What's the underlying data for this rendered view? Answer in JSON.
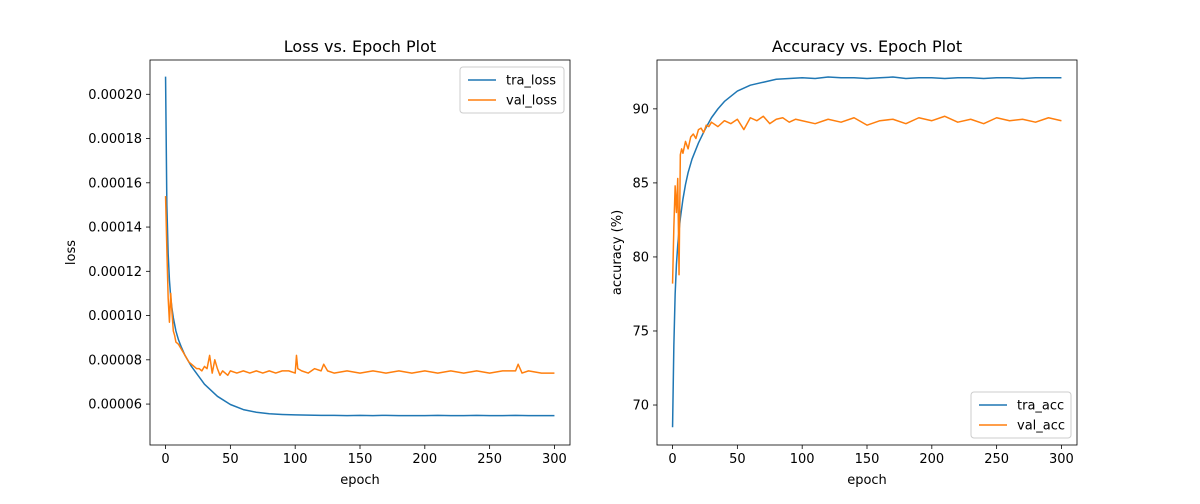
{
  "chart_data": [
    {
      "type": "line",
      "title": "Loss vs. Epoch Plot",
      "xlabel": "epoch",
      "ylabel": "loss",
      "xlim": [
        -12,
        312
      ],
      "ylim": [
        4.15e-05,
        0.0002155
      ],
      "xticks": [
        0,
        50,
        100,
        150,
        200,
        250,
        300
      ],
      "xtick_labels": [
        "0",
        "50",
        "100",
        "150",
        "200",
        "250",
        "300"
      ],
      "yticks": [
        6e-05,
        8e-05,
        0.0001,
        0.00012,
        0.00014,
        0.00016,
        0.00018,
        0.0002
      ],
      "ytick_labels": [
        "0.00006",
        "0.00008",
        "0.00010",
        "0.00012",
        "0.00014",
        "0.00016",
        "0.00018",
        "0.00020"
      ],
      "legend_position": "upper right",
      "series": [
        {
          "name": "tra_loss",
          "color": "#1f77b4",
          "x": [
            0,
            1,
            2,
            3,
            4,
            5,
            6,
            8,
            10,
            12,
            15,
            20,
            25,
            30,
            40,
            50,
            60,
            70,
            80,
            90,
            100,
            110,
            120,
            130,
            140,
            150,
            160,
            170,
            180,
            190,
            200,
            210,
            220,
            230,
            240,
            250,
            260,
            270,
            280,
            290,
            300
          ],
          "y": [
            0.000208,
            0.00015,
            0.000128,
            0.000116,
            0.000108,
            0.000103,
            9.9e-05,
            9.3e-05,
            8.9e-05,
            8.6e-05,
            8.2e-05,
            7.7e-05,
            7.3e-05,
            6.9e-05,
            6.35e-05,
            5.98e-05,
            5.75e-05,
            5.63e-05,
            5.56e-05,
            5.53e-05,
            5.51e-05,
            5.5e-05,
            5.49e-05,
            5.49e-05,
            5.48e-05,
            5.49e-05,
            5.48e-05,
            5.49e-05,
            5.48e-05,
            5.48e-05,
            5.48e-05,
            5.49e-05,
            5.48e-05,
            5.48e-05,
            5.49e-05,
            5.48e-05,
            5.48e-05,
            5.49e-05,
            5.48e-05,
            5.48e-05,
            5.48e-05
          ]
        },
        {
          "name": "val_loss",
          "color": "#ff7f0e",
          "x": [
            0,
            1,
            2,
            3,
            4,
            5,
            6,
            7,
            8,
            10,
            12,
            14,
            16,
            18,
            20,
            22,
            24,
            26,
            28,
            30,
            32,
            34,
            36,
            38,
            40,
            42,
            44,
            46,
            48,
            50,
            55,
            60,
            65,
            70,
            75,
            80,
            85,
            90,
            95,
            100,
            101,
            102,
            105,
            110,
            115,
            120,
            122,
            125,
            130,
            140,
            150,
            160,
            170,
            180,
            190,
            200,
            210,
            220,
            230,
            240,
            250,
            260,
            270,
            272,
            275,
            280,
            290,
            300
          ],
          "y": [
            0.000154,
            0.00013,
            0.000108,
            9.7e-05,
            0.00011,
            0.000101,
            9.3e-05,
            9.1e-05,
            8.8e-05,
            8.7e-05,
            8.5e-05,
            8.3e-05,
            8.1e-05,
            7.9e-05,
            7.8e-05,
            7.7e-05,
            7.6e-05,
            7.6e-05,
            7.5e-05,
            7.7e-05,
            7.6e-05,
            8.2e-05,
            7.4e-05,
            8e-05,
            7.6e-05,
            7.3e-05,
            7.5e-05,
            7.4e-05,
            7.3e-05,
            7.5e-05,
            7.4e-05,
            7.5e-05,
            7.4e-05,
            7.5e-05,
            7.4e-05,
            7.5e-05,
            7.4e-05,
            7.5e-05,
            7.5e-05,
            7.4e-05,
            8.2e-05,
            7.6e-05,
            7.5e-05,
            7.4e-05,
            7.6e-05,
            7.5e-05,
            7.8e-05,
            7.5e-05,
            7.4e-05,
            7.5e-05,
            7.4e-05,
            7.5e-05,
            7.4e-05,
            7.5e-05,
            7.4e-05,
            7.5e-05,
            7.4e-05,
            7.5e-05,
            7.4e-05,
            7.5e-05,
            7.4e-05,
            7.5e-05,
            7.5e-05,
            7.8e-05,
            7.4e-05,
            7.5e-05,
            7.4e-05,
            7.4e-05
          ]
        }
      ]
    },
    {
      "type": "line",
      "title": "Accuracy vs. Epoch Plot",
      "xlabel": "epoch",
      "ylabel": "accuracy (%)",
      "xlim": [
        -12,
        312
      ],
      "ylim": [
        67.3,
        93.3
      ],
      "xticks": [
        0,
        50,
        100,
        150,
        200,
        250,
        300
      ],
      "xtick_labels": [
        "0",
        "50",
        "100",
        "150",
        "200",
        "250",
        "300"
      ],
      "yticks": [
        70,
        75,
        80,
        85,
        90
      ],
      "ytick_labels": [
        "70",
        "75",
        "80",
        "85",
        "90"
      ],
      "legend_position": "lower right",
      "series": [
        {
          "name": "tra_acc",
          "color": "#1f77b4",
          "x": [
            0,
            1,
            2,
            3,
            4,
            5,
            6,
            8,
            10,
            12,
            15,
            20,
            25,
            30,
            35,
            40,
            50,
            60,
            70,
            80,
            90,
            100,
            110,
            120,
            130,
            140,
            150,
            160,
            170,
            180,
            190,
            200,
            210,
            220,
            230,
            240,
            250,
            260,
            270,
            280,
            290,
            300
          ],
          "y": [
            68.5,
            74.0,
            77.5,
            79.5,
            80.8,
            81.8,
            82.6,
            83.9,
            84.9,
            85.7,
            86.6,
            87.7,
            88.6,
            89.4,
            90.0,
            90.5,
            91.2,
            91.6,
            91.8,
            92.0,
            92.05,
            92.1,
            92.05,
            92.15,
            92.1,
            92.1,
            92.05,
            92.1,
            92.15,
            92.05,
            92.1,
            92.1,
            92.05,
            92.1,
            92.1,
            92.05,
            92.1,
            92.1,
            92.05,
            92.1,
            92.1,
            92.1
          ]
        },
        {
          "name": "val_acc",
          "color": "#ff7f0e",
          "x": [
            0,
            1,
            2,
            3,
            4,
            5,
            6,
            7,
            8,
            10,
            12,
            14,
            16,
            18,
            20,
            22,
            24,
            26,
            28,
            30,
            35,
            40,
            45,
            50,
            55,
            60,
            65,
            70,
            75,
            80,
            85,
            90,
            95,
            100,
            110,
            120,
            130,
            140,
            150,
            160,
            170,
            180,
            190,
            200,
            210,
            220,
            230,
            240,
            250,
            260,
            270,
            280,
            290,
            300
          ],
          "y": [
            78.2,
            82.0,
            84.8,
            83.0,
            85.3,
            78.8,
            86.9,
            87.3,
            87.0,
            87.8,
            87.3,
            88.1,
            88.3,
            88.0,
            88.6,
            88.7,
            88.4,
            88.9,
            88.8,
            89.1,
            88.8,
            89.2,
            89.0,
            89.3,
            88.6,
            89.4,
            89.2,
            89.5,
            89.0,
            89.3,
            89.4,
            89.1,
            89.3,
            89.2,
            89.0,
            89.3,
            89.1,
            89.4,
            88.9,
            89.2,
            89.3,
            89.0,
            89.4,
            89.2,
            89.5,
            89.1,
            89.3,
            89.0,
            89.4,
            89.2,
            89.3,
            89.1,
            89.4,
            89.2
          ]
        }
      ]
    }
  ]
}
